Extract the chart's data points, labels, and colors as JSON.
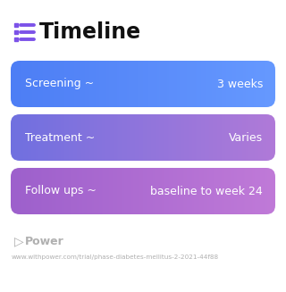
{
  "title": "Timeline",
  "title_fontsize": 17,
  "title_color": "#111111",
  "background_color": "#ffffff",
  "icon_color": "#7c52e8",
  "icon_line_color": "#7c52e8",
  "rows": [
    {
      "label": "Screening ~",
      "value": "3 weeks",
      "color_left": "#4d7ef5",
      "color_right": "#6699ff",
      "text_color": "#ffffff"
    },
    {
      "label": "Treatment ~",
      "value": "Varies",
      "color_left": "#7070e0",
      "color_right": "#b07ad8",
      "text_color": "#ffffff"
    },
    {
      "label": "Follow ups ~",
      "value": "baseline to week 24",
      "color_left": "#9d60cc",
      "color_right": "#c07ad8",
      "text_color": "#ffffff"
    }
  ],
  "footer_logo": "Power",
  "footer_url": "www.withpower.com/trial/phase-diabetes-mellitus-2-2021-44f88",
  "footer_color": "#b0b0b0",
  "footer_fontsize": 5.2,
  "logo_fontsize": 9
}
